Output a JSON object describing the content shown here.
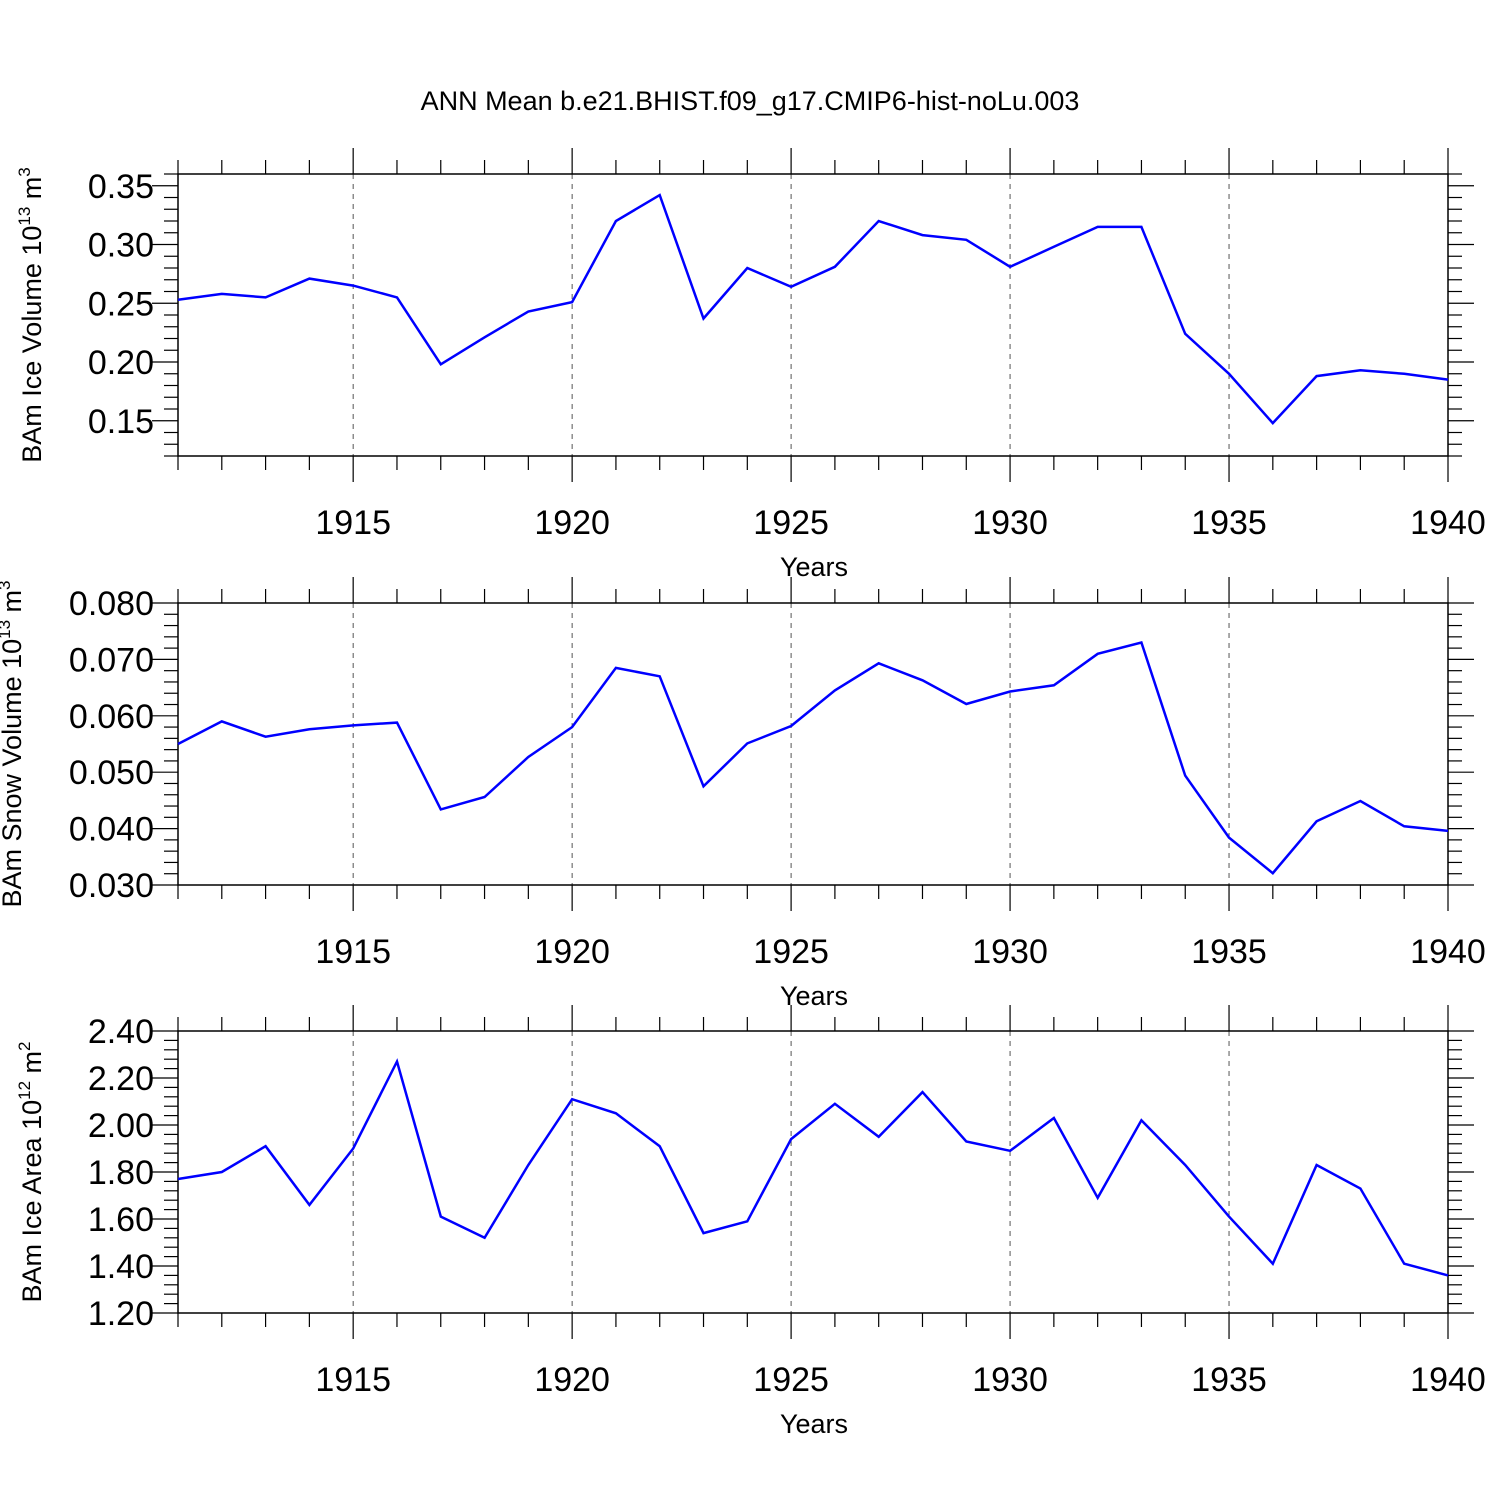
{
  "title": "ANN Mean b.e21.BHIST.f09_g17.CMIP6-hist-noLu.003",
  "colors": {
    "line": "#0000ff",
    "axis": "#000000",
    "grid": "#555555"
  },
  "chart_data": [
    {
      "type": "line",
      "ylabel": {
        "text": "BAm Ice Volume 10",
        "sup": "13",
        "unit": " m",
        "unit_sup": "3"
      },
      "xlabel": "Years",
      "xlim": [
        1911,
        1940
      ],
      "ylim": [
        0.12,
        0.36
      ],
      "yticks": [
        0.15,
        0.2,
        0.25,
        0.3,
        0.35
      ],
      "ytick_labels": [
        "0.15",
        "0.20",
        "0.25",
        "0.30",
        "0.35"
      ],
      "xticks": [
        1915,
        1920,
        1925,
        1930,
        1935,
        1940
      ],
      "xtick_labels": [
        "1915",
        "1920",
        "1925",
        "1930",
        "1935",
        "1940"
      ],
      "grid": "vertical-dashed",
      "series": [
        {
          "name": "BAm Ice Volume",
          "x": [
            1911,
            1912,
            1913,
            1914,
            1915,
            1916,
            1917,
            1918,
            1919,
            1920,
            1921,
            1922,
            1923,
            1924,
            1925,
            1926,
            1927,
            1928,
            1929,
            1930,
            1931,
            1932,
            1933,
            1934,
            1935,
            1936,
            1937,
            1938,
            1939,
            1940
          ],
          "values": [
            0.253,
            0.258,
            0.255,
            0.271,
            0.265,
            0.255,
            0.198,
            0.221,
            0.243,
            0.251,
            0.32,
            0.342,
            0.237,
            0.28,
            0.264,
            0.281,
            0.32,
            0.308,
            0.304,
            0.281,
            0.298,
            0.315,
            0.315,
            0.224,
            0.19,
            0.148,
            0.188,
            0.193,
            0.19,
            0.185
          ]
        }
      ]
    },
    {
      "type": "line",
      "ylabel": {
        "text": "BAm Snow Volume 10",
        "sup": "13",
        "unit": " m",
        "unit_sup": "3"
      },
      "xlabel": "Years",
      "xlim": [
        1911,
        1940
      ],
      "ylim": [
        0.03,
        0.08
      ],
      "yticks": [
        0.03,
        0.04,
        0.05,
        0.06,
        0.07,
        0.08
      ],
      "ytick_labels": [
        "0.030",
        "0.040",
        "0.050",
        "0.060",
        "0.070",
        "0.080"
      ],
      "xticks": [
        1915,
        1920,
        1925,
        1930,
        1935,
        1940
      ],
      "xtick_labels": [
        "1915",
        "1920",
        "1925",
        "1930",
        "1935",
        "1940"
      ],
      "grid": "vertical-dashed",
      "series": [
        {
          "name": "BAm Snow Volume",
          "x": [
            1911,
            1912,
            1913,
            1914,
            1915,
            1916,
            1917,
            1918,
            1919,
            1920,
            1921,
            1922,
            1923,
            1924,
            1925,
            1926,
            1927,
            1928,
            1929,
            1930,
            1931,
            1932,
            1933,
            1934,
            1935,
            1936,
            1937,
            1938,
            1939,
            1940
          ],
          "values": [
            0.055,
            0.059,
            0.0563,
            0.0576,
            0.0583,
            0.0588,
            0.0434,
            0.0456,
            0.0527,
            0.058,
            0.0685,
            0.067,
            0.0475,
            0.0551,
            0.0582,
            0.0645,
            0.0693,
            0.0663,
            0.0621,
            0.0643,
            0.0654,
            0.071,
            0.073,
            0.0494,
            0.0384,
            0.0321,
            0.0413,
            0.0449,
            0.0404,
            0.0396
          ]
        }
      ]
    },
    {
      "type": "line",
      "ylabel": {
        "text": "BAm Ice Area 10",
        "sup": "12",
        "unit": " m",
        "unit_sup": "2"
      },
      "xlabel": "Years",
      "xlim": [
        1911,
        1940
      ],
      "ylim": [
        1.2,
        2.4
      ],
      "yticks": [
        1.2,
        1.4,
        1.6,
        1.8,
        2.0,
        2.2,
        2.4
      ],
      "ytick_labels": [
        "1.20",
        "1.40",
        "1.60",
        "1.80",
        "2.00",
        "2.20",
        "2.40"
      ],
      "xticks": [
        1915,
        1920,
        1925,
        1930,
        1935,
        1940
      ],
      "xtick_labels": [
        "1915",
        "1920",
        "1925",
        "1930",
        "1935",
        "1940"
      ],
      "grid": "vertical-dashed",
      "series": [
        {
          "name": "BAm Ice Area",
          "x": [
            1911,
            1912,
            1913,
            1914,
            1915,
            1916,
            1917,
            1918,
            1919,
            1920,
            1921,
            1922,
            1923,
            1924,
            1925,
            1926,
            1927,
            1928,
            1929,
            1930,
            1931,
            1932,
            1933,
            1934,
            1935,
            1936,
            1937,
            1938,
            1939,
            1940
          ],
          "values": [
            1.77,
            1.8,
            1.91,
            1.66,
            1.9,
            2.27,
            1.61,
            1.52,
            1.83,
            2.11,
            2.05,
            1.91,
            1.54,
            1.59,
            1.94,
            2.09,
            1.95,
            2.14,
            1.93,
            1.89,
            2.03,
            1.69,
            2.02,
            1.83,
            1.61,
            1.41,
            1.83,
            1.73,
            1.41,
            1.36
          ]
        }
      ]
    }
  ]
}
